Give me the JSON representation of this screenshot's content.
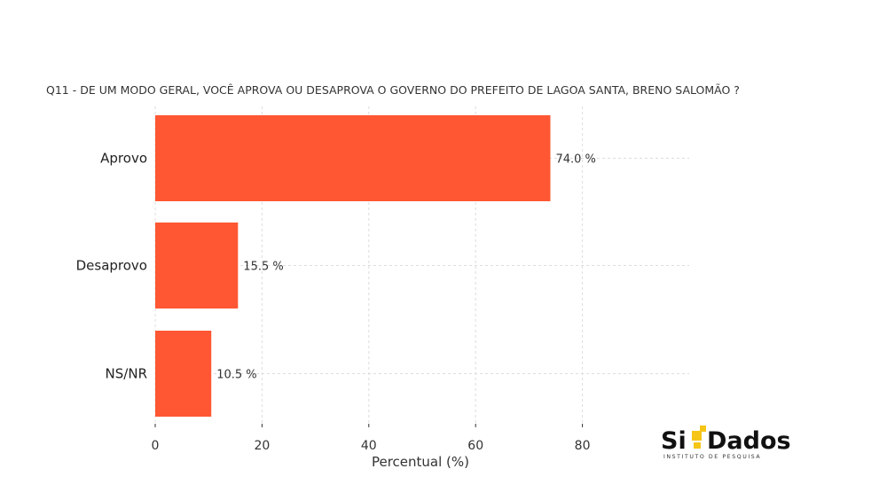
{
  "chart_data": {
    "type": "bar",
    "orientation": "horizontal",
    "title": "Q11 - DE UM MODO GERAL, VOCÊ APROVA OU DESAPROVA O GOVERNO DO PREFEITO DE LAGOA SANTA, BRENO SALOMÃO ?",
    "categories": [
      "Aprovo",
      "Desaprovo",
      "NS/NR"
    ],
    "values": [
      74.0,
      15.5,
      10.5
    ],
    "data_labels": [
      "74.0 %",
      "15.5 %",
      "10.5 %"
    ],
    "xlabel": "Percentual (%)",
    "ylabel": "",
    "xlim": [
      0,
      100
    ],
    "xticks": [
      0,
      20,
      40,
      60,
      80
    ],
    "grid": "dashed",
    "bar_color": "#ff5733"
  },
  "logo": {
    "name_start": "Si",
    "name_end": "Dados",
    "subtitle": "INSTITUTO DE PESQUISA",
    "accent_color": "#f5c518"
  }
}
